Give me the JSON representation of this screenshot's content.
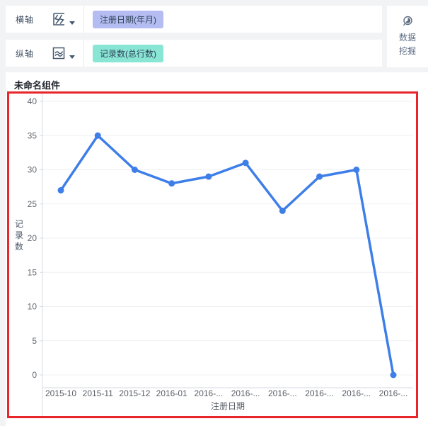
{
  "toolbar": {
    "rows": [
      {
        "label": "横轴",
        "icon": "x-axis-field-icon",
        "field_pill": "注册日期(年月)",
        "pill_bg": "#b5bcf1"
      },
      {
        "label": "纵轴",
        "icon": "y-axis-field-icon",
        "field_pill": "记录数(总行数)",
        "pill_bg": "#89e6d5"
      }
    ],
    "mining": {
      "icon": "data-mining-magnifier-icon",
      "lines": [
        "数据",
        "挖掘"
      ]
    }
  },
  "component": {
    "title": "未命名组件",
    "selection_border_color": "#e8252b"
  },
  "chart_data": {
    "type": "line",
    "categories": [
      "2015-10",
      "2015-11",
      "2015-12",
      "2016-01",
      "2016-...",
      "2016-...",
      "2016-...",
      "2016-...",
      "2016-...",
      "2016-..."
    ],
    "values": [
      27,
      35,
      30,
      28,
      29,
      31,
      24,
      29,
      30,
      0
    ],
    "title": "",
    "xlabel": "注册日期",
    "ylabel": "记录数",
    "ylim": [
      0,
      40
    ],
    "yticks": [
      0,
      5,
      10,
      15,
      20,
      25,
      30,
      35,
      40
    ],
    "grid": true,
    "legend": "none",
    "line_color": "#3e7ee8",
    "grid_color": "#f0f1f4",
    "axis_line_color": "#d7dadf",
    "tick_text_color": "#62676e"
  }
}
